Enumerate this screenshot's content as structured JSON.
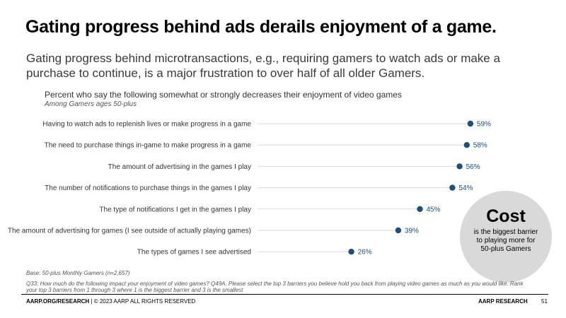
{
  "title": "Gating progress behind ads derails enjoyment of a game.",
  "subtitle": "Gating progress behind microtransactions, e.g., requiring gamers to watch ads or make a purchase to continue, is a major frustration to over half of all older Gamers.",
  "chart_data": {
    "type": "scatter",
    "title": "Percent who say the following somewhat or strongly decreases their enjoyment of video games",
    "subtitle": "Among Gamers ages 50-plus",
    "categories": [
      "Having to watch ads to replenish lives or make progress in a game",
      "The need to purchase things in-game to make progress in a game",
      "The amount of advertising in the games I play",
      "The number of notifications to purchase things in the games I play",
      "The type of notifications I get in the games I play",
      "The amount of advertising for games (I see outside of actually playing games)",
      "The types of games I see advertised"
    ],
    "values": [
      59,
      58,
      56,
      54,
      45,
      39,
      26
    ],
    "value_labels": [
      "59%",
      "58%",
      "56%",
      "54%",
      "45%",
      "39%",
      "26%"
    ],
    "xlim": [
      0,
      60
    ],
    "xlabel": "",
    "ylabel": "",
    "colors": {
      "dot": "#1f4e79",
      "line": "#d9d9d9"
    }
  },
  "callout": {
    "heading": "Cost",
    "body": "is the biggest barrier to playing more for 50-plus Gamers"
  },
  "base_note": "Base: 50-plus Monthly Gamers (n=2,657)",
  "question_note": "Q33: How much do the following impact your enjoyment of video games? Q49A. Please select the top 3 barriers you believe hold you back from playing video games as much as you would like. Rank your top 3 barriers from 1 through 3 where 1 is the biggest barrier and 3 is the smallest",
  "footer": {
    "source_bold": "AARP.ORG/RESEARCH",
    "source_rest": " | © 2023 AARP ALL RIGHTS RESERVED",
    "brand": "AARP RESEARCH",
    "page_number": "51"
  }
}
